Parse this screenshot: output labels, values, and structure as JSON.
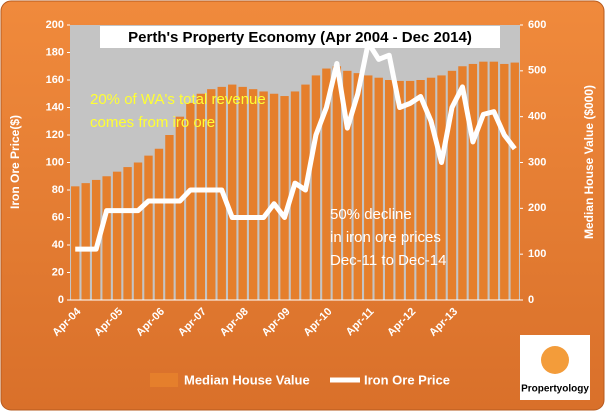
{
  "chart_data": {
    "type": "bar_line",
    "title": "Perth's Property Economy (Apr 2004 - Dec 2014)",
    "y_label": "Iron Ore Price($)",
    "y2_label": "Median House Value ($000)",
    "categories": [
      "Apr-04",
      null,
      null,
      null,
      "Apr-05",
      null,
      null,
      null,
      "Apr-06",
      null,
      null,
      null,
      "Apr-07",
      null,
      null,
      null,
      "Apr-08",
      null,
      null,
      null,
      "Apr-09",
      null,
      null,
      null,
      "Apr-10",
      null,
      null,
      null,
      "Apr-11",
      null,
      null,
      null,
      "Apr-12",
      null,
      null,
      null,
      "Apr-13",
      null,
      null,
      null,
      null,
      null,
      null
    ],
    "series": [
      {
        "name": "Median House Value",
        "type": "bar",
        "axis": "y2",
        "color": "#e57f2c",
        "values": [
          248,
          255,
          262,
          270,
          280,
          290,
          300,
          315,
          330,
          360,
          400,
          430,
          450,
          460,
          465,
          470,
          465,
          460,
          455,
          450,
          445,
          455,
          470,
          490,
          505,
          510,
          500,
          495,
          490,
          485,
          480,
          478,
          478,
          480,
          485,
          490,
          500,
          510,
          515,
          520,
          520,
          515,
          518
        ]
      },
      {
        "name": "Iron Ore Price",
        "type": "line",
        "axis": "y",
        "color": "#ffffff",
        "values": [
          37,
          37,
          37,
          65,
          65,
          65,
          65,
          72,
          72,
          72,
          72,
          80,
          80,
          80,
          80,
          60,
          60,
          60,
          60,
          70,
          60,
          85,
          80,
          120,
          140,
          172,
          125,
          150,
          187,
          175,
          178,
          140,
          143,
          148,
          130,
          100,
          140,
          155,
          115,
          135,
          137,
          120,
          110
        ]
      }
    ],
    "ylim": [
      0,
      200
    ],
    "yticks": [
      0,
      20,
      40,
      60,
      80,
      100,
      120,
      140,
      160,
      180,
      200
    ],
    "y2lim": [
      0,
      600
    ],
    "y2ticks": [
      0,
      100,
      200,
      300,
      400,
      500,
      600
    ],
    "annotations": [
      {
        "lines": [
          "20% of WA's total revenue",
          "comes from iro ore"
        ],
        "color": "#ffff33"
      },
      {
        "lines": [
          "50% decline",
          "in iron ore prices",
          "Dec-11 to Dec-14"
        ],
        "color": "#ffffff"
      }
    ],
    "logo": "Propertyology"
  }
}
